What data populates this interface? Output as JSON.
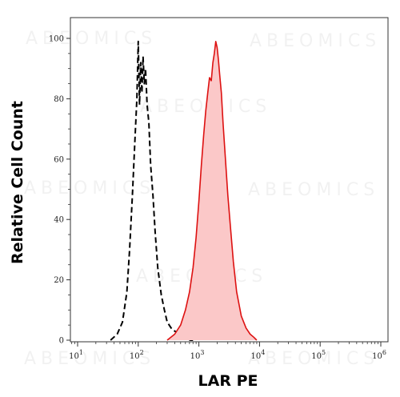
{
  "chart_data": {
    "type": "area",
    "title": "",
    "xlabel": "LAR PE",
    "ylabel": "Relative Cell Count",
    "x_scale": "log10",
    "xlim": [
      10,
      1000000
    ],
    "ylim": [
      0,
      100
    ],
    "y_ticks": [
      "0",
      "20",
      "40",
      "60",
      "80",
      "100"
    ],
    "x_ticks": [
      {
        "base": "10",
        "exp": "1"
      },
      {
        "base": "10",
        "exp": "2"
      },
      {
        "base": "10",
        "exp": "3"
      },
      {
        "base": "10",
        "exp": "4"
      },
      {
        "base": "10",
        "exp": "5"
      },
      {
        "base": "10",
        "exp": "6"
      }
    ],
    "grid": false,
    "legend": "none",
    "watermark": "ABEOMICS",
    "series": [
      {
        "style": "dashed",
        "color": "#000000",
        "x": [
          35,
          45,
          55,
          65,
          72,
          80,
          88,
          95,
          100,
          105,
          110,
          115,
          120,
          126,
          132,
          140,
          150,
          160,
          175,
          190,
          210,
          240,
          270,
          300,
          350,
          400,
          480,
          560,
          640,
          720,
          800
        ],
        "values": [
          0,
          2,
          6,
          16,
          30,
          48,
          66,
          80,
          99,
          78,
          92,
          82,
          94,
          85,
          90,
          78,
          72,
          58,
          48,
          36,
          24,
          15,
          10,
          6,
          4,
          3,
          2,
          1,
          0.5,
          0,
          0
        ]
      },
      {
        "style": "filled",
        "color": "#dd1111",
        "fill": "#fbc8c8",
        "x": [
          300,
          400,
          500,
          600,
          700,
          800,
          900,
          1000,
          1100,
          1200,
          1300,
          1400,
          1500,
          1600,
          1700,
          1800,
          1900,
          2000,
          2100,
          2200,
          2350,
          2500,
          2700,
          3000,
          3300,
          3700,
          4200,
          5000,
          6000,
          7000,
          8000,
          9000
        ],
        "values": [
          0,
          2,
          5,
          10,
          16,
          24,
          34,
          46,
          58,
          68,
          76,
          82,
          87,
          86,
          92,
          95,
          99,
          97,
          93,
          88,
          82,
          72,
          62,
          48,
          38,
          26,
          16,
          8,
          4,
          2,
          1,
          0
        ]
      }
    ]
  }
}
